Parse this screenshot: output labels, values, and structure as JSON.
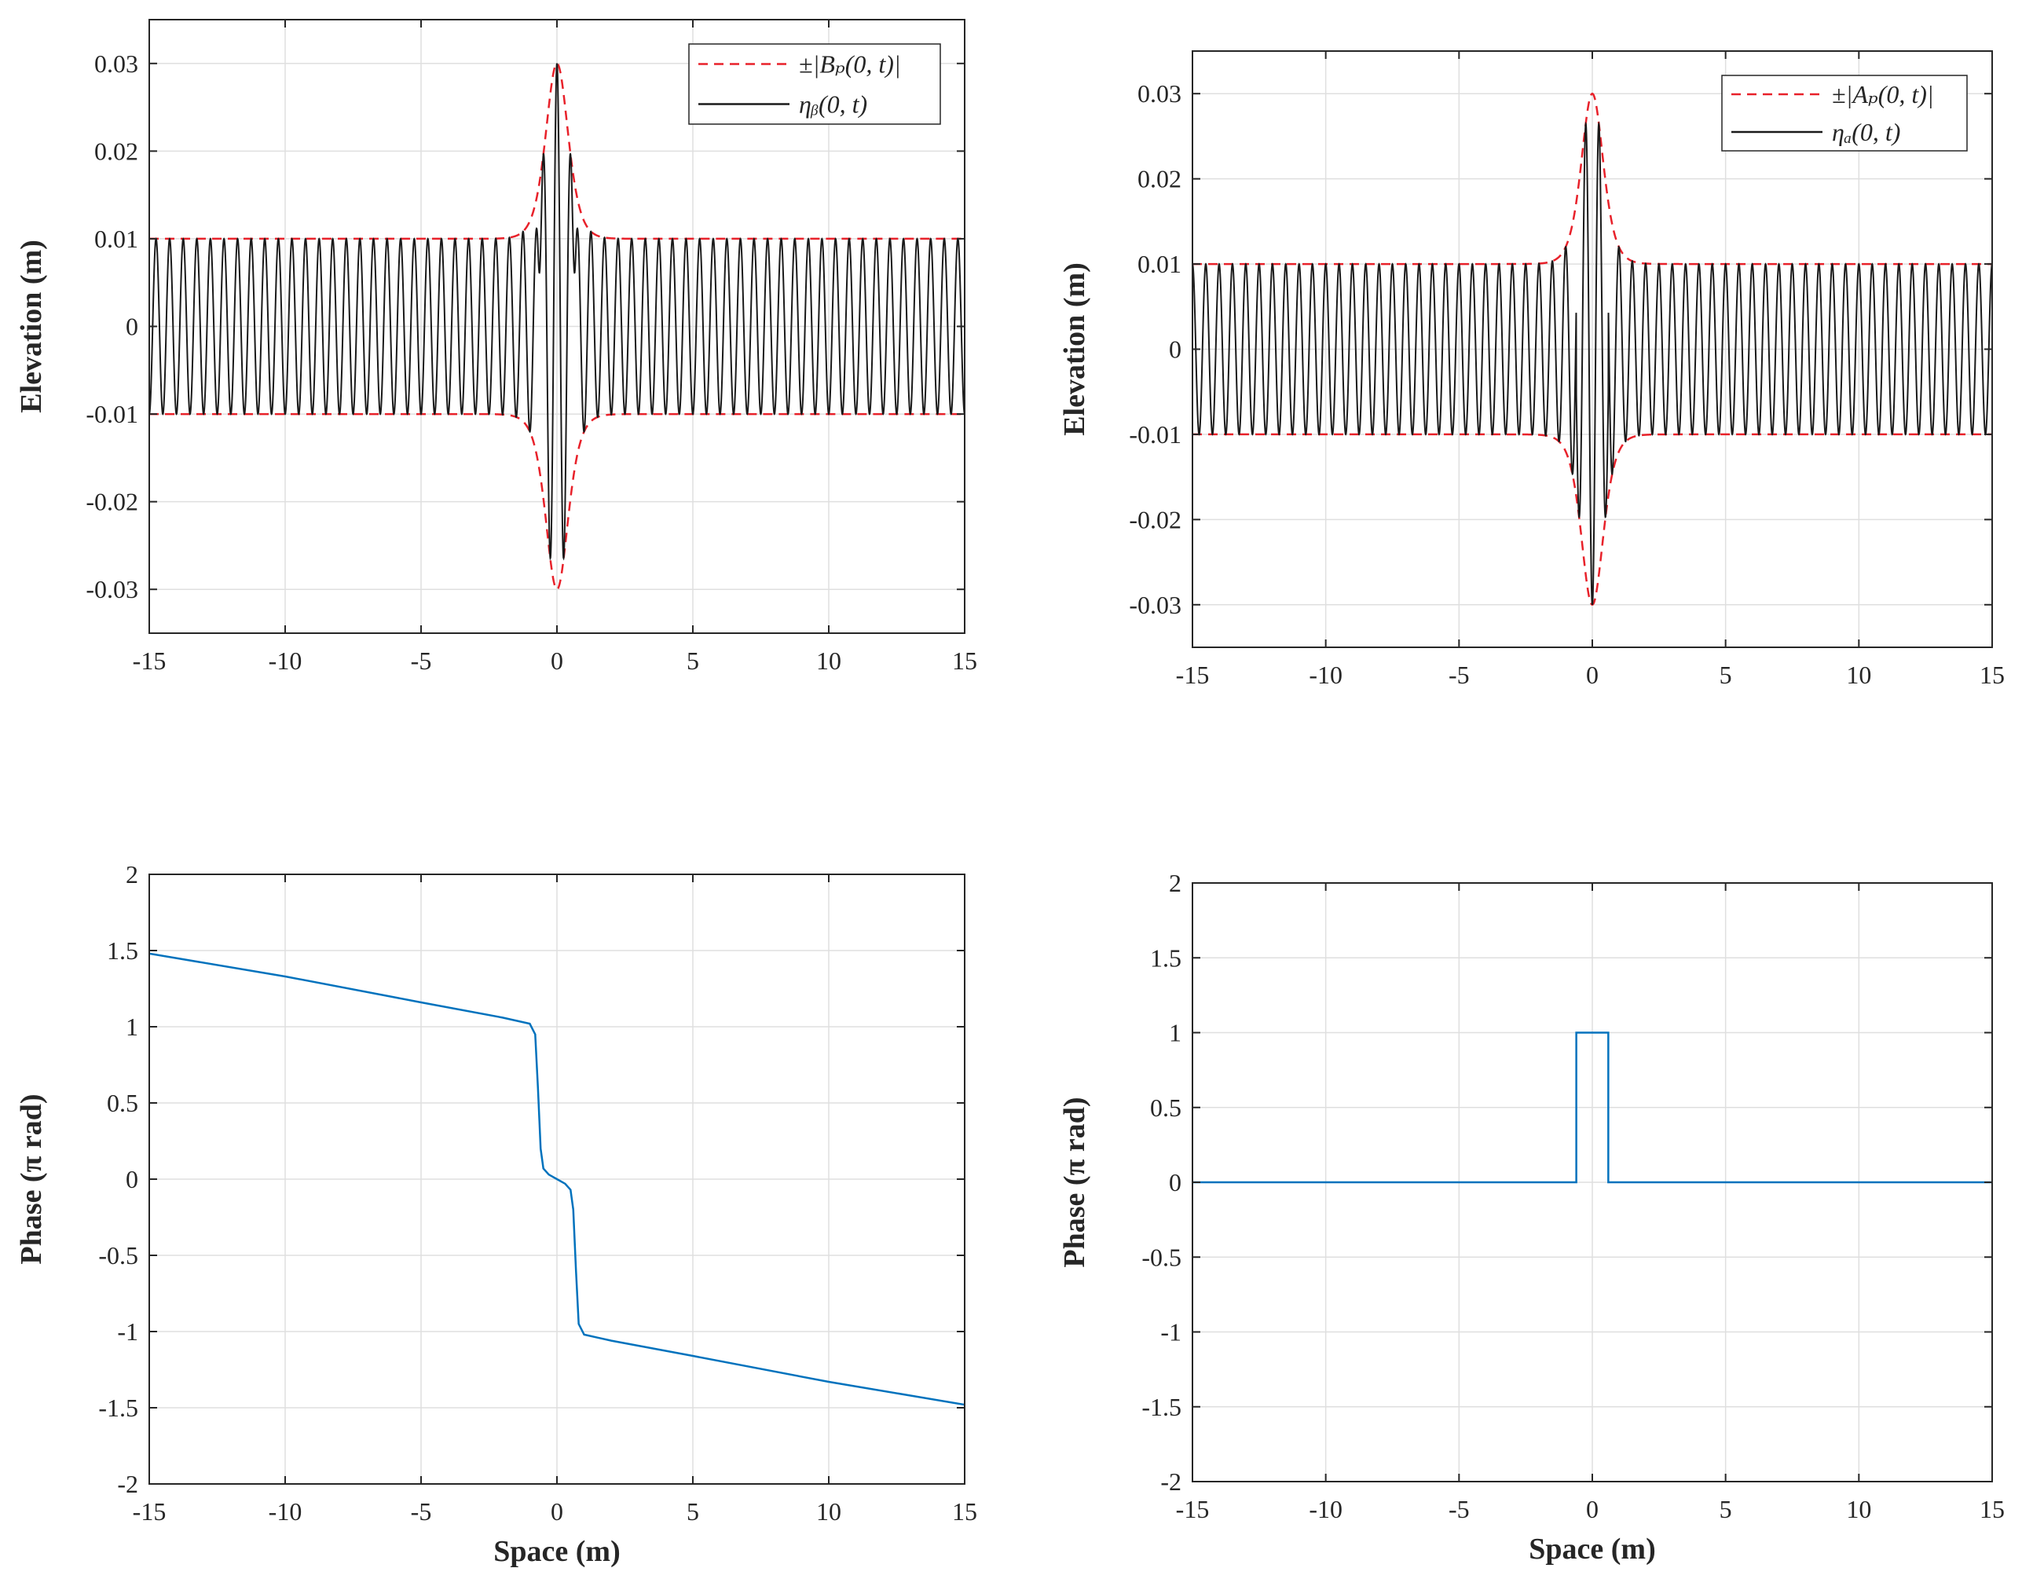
{
  "chart_data": [
    {
      "id": "top-left",
      "type": "line",
      "title": "",
      "xlabel": "",
      "ylabel": "Elevation (m)",
      "xlim": [
        -15,
        15
      ],
      "ylim": [
        -0.035,
        0.035
      ],
      "xticks": [
        -15,
        -10,
        -5,
        0,
        5,
        10,
        15
      ],
      "xtick_labels": [
        "-15",
        "-10",
        "-5",
        "0",
        "5",
        "10",
        "15"
      ],
      "yticks": [
        -0.03,
        -0.02,
        -0.01,
        0,
        0.01,
        0.02,
        0.03
      ],
      "ytick_labels": [
        "-0.03",
        "-0.02",
        "-0.01",
        "0",
        "0.01",
        "0.02",
        "0.03"
      ],
      "grid": true,
      "legend_position": "top-right",
      "series": [
        {
          "name": "±|B_P(0,t)|",
          "legend": "±|Bₚ(0, t)|",
          "style": "dashed",
          "color": "#e8212a",
          "model": {
            "kind": "envelope",
            "a0": 0.01,
            "peak": 0.03,
            "width": 0.55
          }
        },
        {
          "name": "η_B(0,t)",
          "legend": "ηᵦ(0, t)",
          "style": "solid",
          "color": "#1a1a1a",
          "model": {
            "kind": "oscillation",
            "a0": 0.01,
            "peak": 0.03,
            "width": 0.55,
            "wavelength": 0.5,
            "phase_kind": "smooth"
          }
        }
      ]
    },
    {
      "id": "top-right",
      "type": "line",
      "title": "",
      "xlabel": "",
      "ylabel": "Elevation (m)",
      "xlim": [
        -15,
        15
      ],
      "ylim": [
        -0.035,
        0.035
      ],
      "xticks": [
        -15,
        -10,
        -5,
        0,
        5,
        10,
        15
      ],
      "xtick_labels": [
        "-15",
        "-10",
        "-5",
        "0",
        "5",
        "10",
        "15"
      ],
      "yticks": [
        -0.03,
        -0.02,
        -0.01,
        0,
        0.01,
        0.02,
        0.03
      ],
      "ytick_labels": [
        "-0.03",
        "-0.02",
        "-0.01",
        "0",
        "0.01",
        "0.02",
        "0.03"
      ],
      "grid": true,
      "legend_position": "top-right",
      "series": [
        {
          "name": "±|A_P(0,t)|",
          "legend": "±|Aₚ(0, t)|",
          "style": "dashed",
          "color": "#e8212a",
          "model": {
            "kind": "envelope",
            "a0": 0.01,
            "peak": 0.03,
            "width": 0.55
          }
        },
        {
          "name": "η_A(0,t)",
          "legend": "ηₐ(0, t)",
          "style": "solid",
          "color": "#1a1a1a",
          "model": {
            "kind": "oscillation",
            "a0": 0.01,
            "peak": 0.03,
            "width": 0.55,
            "wavelength": 0.5,
            "phase_kind": "step"
          }
        }
      ]
    },
    {
      "id": "bottom-left",
      "type": "line",
      "title": "",
      "xlabel": "Space (m)",
      "ylabel": "Phase (π rad)",
      "xlim": [
        -15,
        15
      ],
      "ylim": [
        -2,
        2
      ],
      "xticks": [
        -15,
        -10,
        -5,
        0,
        5,
        10,
        15
      ],
      "xtick_labels": [
        "-15",
        "-10",
        "-5",
        "0",
        "5",
        "10",
        "15"
      ],
      "yticks": [
        -2,
        -1.5,
        -1,
        -0.5,
        0,
        0.5,
        1,
        1.5,
        2
      ],
      "ytick_labels": [
        "-2",
        "-1.5",
        "-1",
        "-0.5",
        "0",
        "0.5",
        "1",
        "1.5",
        "2"
      ],
      "grid": true,
      "series": [
        {
          "name": "phase",
          "style": "solid",
          "color": "#0072bd",
          "points": [
            [
              -15,
              1.48
            ],
            [
              -10,
              1.33
            ],
            [
              -5,
              1.16
            ],
            [
              -2,
              1.06
            ],
            [
              -1,
              1.02
            ],
            [
              -0.8,
              0.95
            ],
            [
              -0.7,
              0.6
            ],
            [
              -0.6,
              0.2
            ],
            [
              -0.5,
              0.07
            ],
            [
              -0.3,
              0.03
            ],
            [
              0,
              0.0
            ],
            [
              0.3,
              -0.03
            ],
            [
              0.5,
              -0.07
            ],
            [
              0.6,
              -0.2
            ],
            [
              0.7,
              -0.6
            ],
            [
              0.8,
              -0.95
            ],
            [
              1,
              -1.02
            ],
            [
              2,
              -1.06
            ],
            [
              5,
              -1.16
            ],
            [
              10,
              -1.33
            ],
            [
              15,
              -1.48
            ]
          ]
        }
      ]
    },
    {
      "id": "bottom-right",
      "type": "line",
      "title": "",
      "xlabel": "Space (m)",
      "ylabel": "Phase (π rad)",
      "xlim": [
        -15,
        15
      ],
      "ylim": [
        -2,
        2
      ],
      "xticks": [
        -15,
        -10,
        -5,
        0,
        5,
        10,
        15
      ],
      "xtick_labels": [
        "-15",
        "-10",
        "-5",
        "0",
        "5",
        "10",
        "15"
      ],
      "yticks": [
        -2,
        -1.5,
        -1,
        -0.5,
        0,
        0.5,
        1,
        1.5,
        2
      ],
      "ytick_labels": [
        "-2",
        "-1.5",
        "-1",
        "-0.5",
        "0",
        "0.5",
        "1",
        "1.5",
        "2"
      ],
      "grid": true,
      "series": [
        {
          "name": "phase",
          "style": "solid",
          "color": "#0072bd",
          "points": [
            [
              -15,
              0
            ],
            [
              -0.6,
              0
            ],
            [
              -0.6,
              1
            ],
            [
              0.6,
              1
            ],
            [
              0.6,
              0
            ],
            [
              15,
              0
            ]
          ]
        }
      ]
    }
  ]
}
